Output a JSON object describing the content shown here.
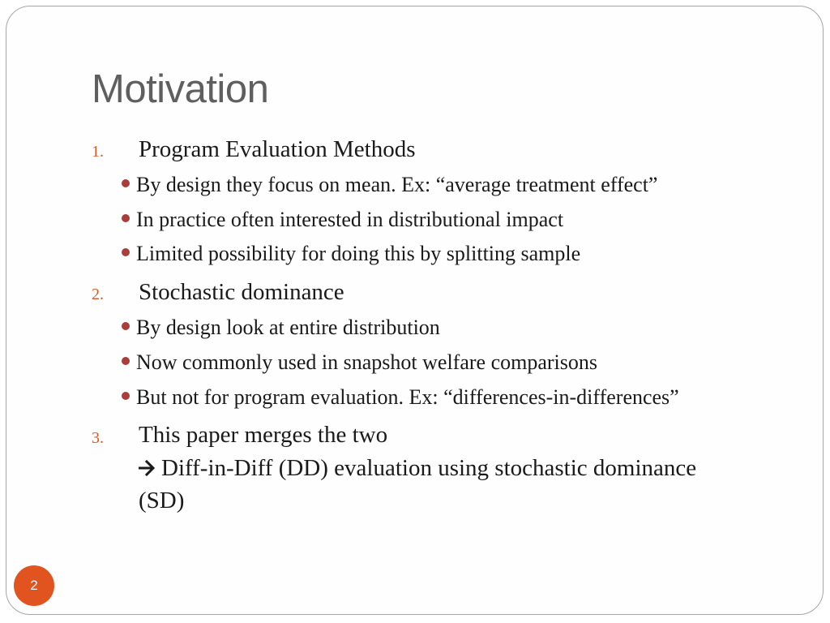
{
  "slide": {
    "title": "Motivation",
    "page_number": "2"
  },
  "items": [
    {
      "number": "1.",
      "text": "Program Evaluation Methods",
      "bullets": [
        "By design they focus on mean. Ex: “average treatment effect”",
        "In practice often interested in distributional impact",
        "Limited possibility for doing this by splitting sample"
      ]
    },
    {
      "number": "2.",
      "text": "Stochastic dominance",
      "bullets": [
        "By design look at entire distribution",
        "Now commonly used in snapshot welfare comparisons",
        "But not for program evaluation. Ex: “differences-in-differences”"
      ]
    },
    {
      "number": "3.",
      "text": "This paper merges the two",
      "arrow_text": "Diff-in-Diff (DD) evaluation using stochastic dominance",
      "continuation": "(SD)"
    }
  ],
  "icons": {
    "arrow": "right-arrow-icon",
    "bullet": "round-bullet-icon"
  },
  "colors": {
    "title": "#5f5f5f",
    "number": "#d75b2a",
    "bullet": "#a83d3a",
    "badge": "#e2541f"
  }
}
